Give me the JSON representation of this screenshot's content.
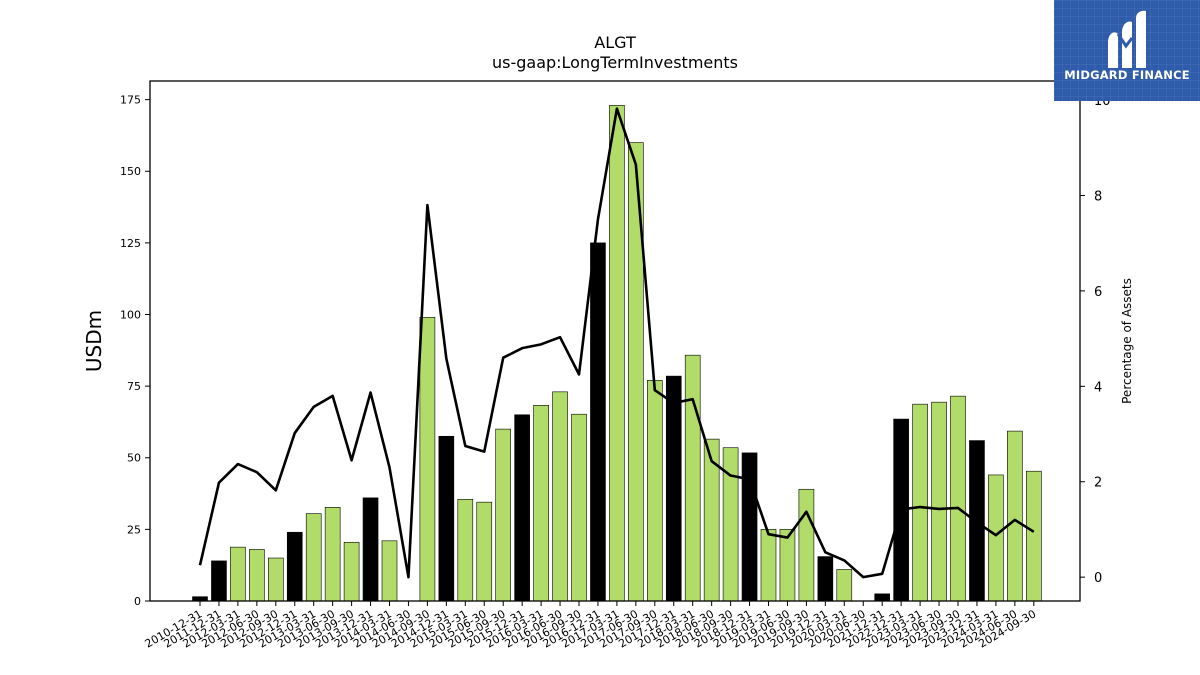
{
  "chart_data": {
    "type": "bar",
    "title": "ALGT",
    "subtitle": "us-gaap:LongTermInvestments",
    "ylabel": "USDm",
    "y2label": "Percentage of Assets",
    "ylim": [
      0,
      181.5
    ],
    "y2lim": [
      -0.5,
      10.4
    ],
    "yticks": [
      0,
      25,
      50,
      75,
      100,
      125,
      150,
      175
    ],
    "y2ticks": [
      0,
      2,
      4,
      6,
      8,
      10
    ],
    "colors": {
      "q4_bar": "#000000",
      "other_bar": "#b2dc69",
      "line": "#000000"
    },
    "categories": [
      "2010-12-31",
      "2011-12-31",
      "2012-03-31",
      "2012-06-30",
      "2012-09-30",
      "2012-12-31",
      "2013-03-31",
      "2013-06-30",
      "2013-09-30",
      "2013-12-31",
      "2014-03-31",
      "2014-06-30",
      "2014-09-30",
      "2014-12-31",
      "2015-03-31",
      "2015-06-30",
      "2015-09-30",
      "2015-12-31",
      "2016-03-31",
      "2016-06-30",
      "2016-09-30",
      "2016-12-31",
      "2017-03-31",
      "2017-06-30",
      "2017-09-30",
      "2017-12-31",
      "2018-03-31",
      "2018-06-30",
      "2018-09-30",
      "2018-12-31",
      "2019-03-31",
      "2019-06-30",
      "2019-09-30",
      "2019-12-31",
      "2020-03-31",
      "2020-06-30",
      "2021-12-31",
      "2022-12-31",
      "2023-03-31",
      "2023-06-30",
      "2023-09-30",
      "2023-12-31",
      "2024-03-31",
      "2024-06-30",
      "2024-09-30"
    ],
    "series": [
      {
        "type": "bar",
        "values": [
          1.5,
          14,
          18.8,
          18,
          15,
          24,
          30.5,
          32.7,
          20.5,
          36,
          21,
          0,
          99,
          57.5,
          35.5,
          34.5,
          60,
          65,
          68.3,
          73,
          65.2,
          125,
          173,
          160,
          77,
          78.5,
          85.8,
          56.5,
          53.5,
          51.7,
          25,
          25,
          39,
          15.5,
          11,
          0,
          2.5,
          63.5,
          68.7,
          69.4,
          71.5,
          56,
          44,
          59.3,
          45.3
        ]
      },
      {
        "type": "line",
        "axis": "right",
        "values": [
          0.25,
          1.98,
          2.37,
          2.2,
          1.82,
          3.02,
          3.57,
          3.8,
          2.45,
          3.87,
          2.3,
          0,
          7.8,
          4.58,
          2.75,
          2.63,
          4.6,
          4.8,
          4.88,
          5.03,
          4.25,
          7.5,
          9.82,
          8.65,
          3.92,
          3.65,
          3.73,
          2.43,
          2.13,
          2.05,
          0.9,
          0.83,
          1.37,
          0.52,
          0.35,
          0,
          0.07,
          1.42,
          1.47,
          1.43,
          1.45,
          1.15,
          0.88,
          1.2,
          0.95
        ]
      }
    ]
  },
  "logo": {
    "text": "MIDGARD FINANCE"
  }
}
